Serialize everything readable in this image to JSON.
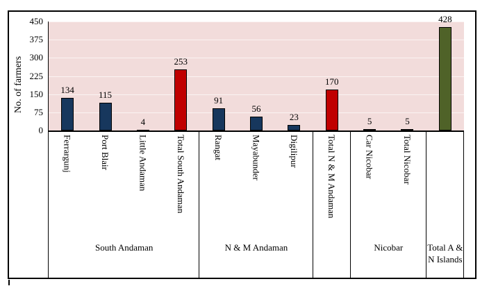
{
  "chart_data": {
    "type": "bar",
    "title": "",
    "ylabel": "No. of farmers",
    "xlabel": "",
    "ylim": [
      0,
      450
    ],
    "yticks": [
      0,
      75,
      150,
      225,
      300,
      375,
      450
    ],
    "grid": true,
    "plot_background": "#F2DCDB",
    "gridline_color": "rgba(255,255,255,0.65)",
    "categories": [
      "Ferrargunj",
      "Port Blair",
      "Little Andaman",
      "Total South Andaman",
      "Rangat",
      "Mayabunder",
      "Digilipur",
      "Total N & M Andaman",
      "Car Nicobar",
      "Total Nicobar",
      "Total A & N Islands"
    ],
    "tick_labels": [
      "Ferrargunj",
      "Port Blair",
      "Little Andaman",
      "Total South Andaman",
      "Rangat",
      "Mayabunder",
      "Digilipur",
      "Total N & M Andaman",
      "Car Nicobar",
      "Total Nicobar",
      ""
    ],
    "values": [
      134,
      115,
      4,
      253,
      91,
      56,
      23,
      170,
      5,
      5,
      428
    ],
    "bar_colors": [
      "#17375D",
      "#17375D",
      "#17375D",
      "#C00000",
      "#17375D",
      "#17375D",
      "#17375D",
      "#C00000",
      "#17375D",
      "#C00000",
      "#4F6228"
    ],
    "colors": {
      "district": "#17375D",
      "subtotal": "#C00000",
      "grand_total": "#4F6228"
    },
    "groups": [
      {
        "label": "South Andaman",
        "span": 4
      },
      {
        "label": "N & M Andaman",
        "span": 3
      },
      {
        "label": "",
        "span": 1
      },
      {
        "label": "Nicobar",
        "span": 2
      },
      {
        "label": "Total A & N Islands",
        "span": 1
      }
    ],
    "legend": null
  }
}
